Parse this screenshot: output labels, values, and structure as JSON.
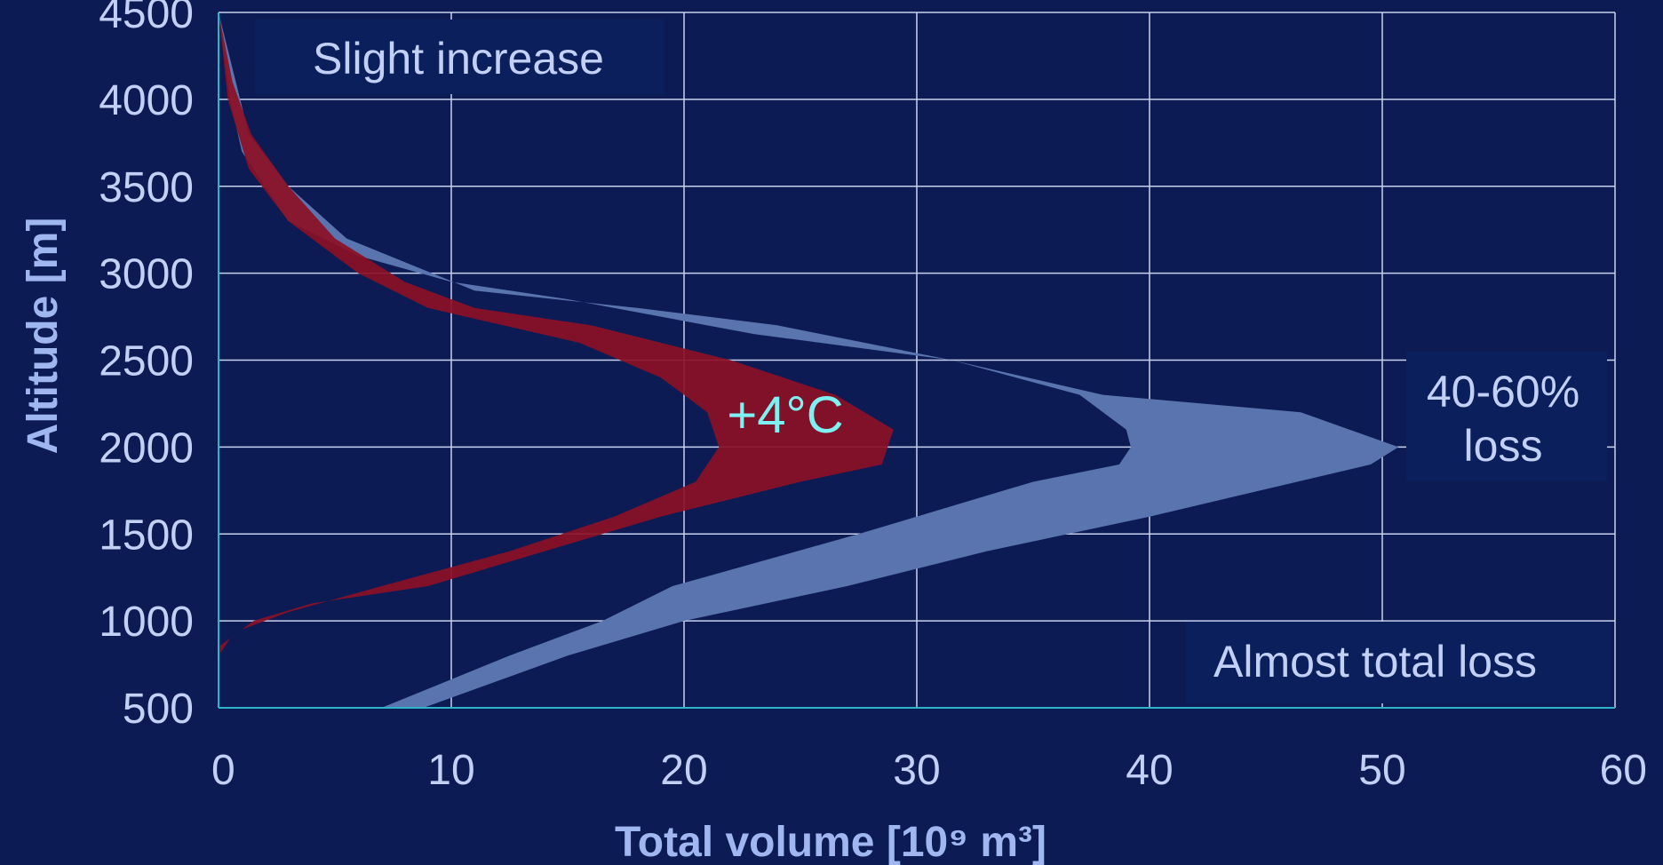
{
  "chart_data": {
    "type": "area",
    "xlabel": "Total volume [10⁹ m³]",
    "ylabel": "Altitude [m]",
    "xlim": [
      0,
      60
    ],
    "ylim": [
      500,
      4500
    ],
    "xticks": [
      "0",
      "10",
      "20",
      "30",
      "40",
      "50",
      "60"
    ],
    "yticks": [
      "500",
      "1000",
      "1500",
      "2000",
      "2500",
      "3000",
      "3500",
      "4000",
      "4500"
    ],
    "grid": true,
    "series": [
      {
        "color": "#5a74b0",
        "band_right": [
          {
            "alt": 4500,
            "vol": 0.0
          },
          {
            "alt": 3800,
            "vol": 1.3
          },
          {
            "alt": 3500,
            "vol": 3.0
          },
          {
            "alt": 3200,
            "vol": 5.5
          },
          {
            "alt": 2900,
            "vol": 11.0
          },
          {
            "alt": 2800,
            "vol": 18.0
          },
          {
            "alt": 2700,
            "vol": 24.0
          },
          {
            "alt": 2500,
            "vol": 31.5
          },
          {
            "alt": 2300,
            "vol": 38.0
          },
          {
            "alt": 2200,
            "vol": 46.5
          },
          {
            "alt": 2000,
            "vol": 50.7
          },
          {
            "alt": 1900,
            "vol": 49.5
          },
          {
            "alt": 1600,
            "vol": 40.0
          },
          {
            "alt": 1400,
            "vol": 33.0
          },
          {
            "alt": 1200,
            "vol": 27.0
          },
          {
            "alt": 1000,
            "vol": 20.0
          },
          {
            "alt": 800,
            "vol": 15.0
          },
          {
            "alt": 500,
            "vol": 8.8
          }
        ],
        "band_left": [
          {
            "alt": 500,
            "vol": 7.0
          },
          {
            "alt": 800,
            "vol": 12.5
          },
          {
            "alt": 1000,
            "vol": 16.5
          },
          {
            "alt": 1200,
            "vol": 19.5
          },
          {
            "alt": 1500,
            "vol": 27.5
          },
          {
            "alt": 1800,
            "vol": 35.0
          },
          {
            "alt": 1900,
            "vol": 38.7
          },
          {
            "alt": 2000,
            "vol": 39.2
          },
          {
            "alt": 2100,
            "vol": 39.0
          },
          {
            "alt": 2300,
            "vol": 37.0
          },
          {
            "alt": 2500,
            "vol": 31.5
          },
          {
            "alt": 2650,
            "vol": 23.0
          },
          {
            "alt": 2850,
            "vol": 15.0
          },
          {
            "alt": 2950,
            "vol": 10.0
          },
          {
            "alt": 3100,
            "vol": 6.0
          },
          {
            "alt": 3300,
            "vol": 3.0
          },
          {
            "alt": 3500,
            "vol": 2.0
          },
          {
            "alt": 3700,
            "vol": 1.0
          },
          {
            "alt": 4000,
            "vol": 0.5
          },
          {
            "alt": 4500,
            "vol": 0.0
          }
        ]
      },
      {
        "color": "#8b1025",
        "band_right": [
          {
            "alt": 4500,
            "vol": 0.0
          },
          {
            "alt": 4100,
            "vol": 0.6
          },
          {
            "alt": 3800,
            "vol": 1.4
          },
          {
            "alt": 3500,
            "vol": 3.0
          },
          {
            "alt": 3200,
            "vol": 5.0
          },
          {
            "alt": 2950,
            "vol": 8.0
          },
          {
            "alt": 2800,
            "vol": 11.0
          },
          {
            "alt": 2700,
            "vol": 16.0
          },
          {
            "alt": 2500,
            "vol": 22.0
          },
          {
            "alt": 2300,
            "vol": 26.5
          },
          {
            "alt": 2100,
            "vol": 29.0
          },
          {
            "alt": 1900,
            "vol": 28.5
          },
          {
            "alt": 1800,
            "vol": 25.0
          },
          {
            "alt": 1600,
            "vol": 19.0
          },
          {
            "alt": 1400,
            "vol": 14.0
          },
          {
            "alt": 1200,
            "vol": 9.0
          },
          {
            "alt": 1100,
            "vol": 4.0
          },
          {
            "alt": 1000,
            "vol": 1.5
          },
          {
            "alt": 900,
            "vol": 0.5
          },
          {
            "alt": 800,
            "vol": 0.0
          }
        ],
        "band_left": [
          {
            "alt": 850,
            "vol": 0.0
          },
          {
            "alt": 950,
            "vol": 1.0
          },
          {
            "alt": 1050,
            "vol": 3.0
          },
          {
            "alt": 1200,
            "vol": 7.0
          },
          {
            "alt": 1400,
            "vol": 12.5
          },
          {
            "alt": 1600,
            "vol": 17.0
          },
          {
            "alt": 1800,
            "vol": 20.5
          },
          {
            "alt": 2000,
            "vol": 21.5
          },
          {
            "alt": 2200,
            "vol": 21.0
          },
          {
            "alt": 2400,
            "vol": 19.0
          },
          {
            "alt": 2600,
            "vol": 15.5
          },
          {
            "alt": 2800,
            "vol": 9.0
          },
          {
            "alt": 3000,
            "vol": 6.0
          },
          {
            "alt": 3300,
            "vol": 3.0
          },
          {
            "alt": 3600,
            "vol": 1.3
          },
          {
            "alt": 4000,
            "vol": 0.4
          },
          {
            "alt": 4500,
            "vol": 0.0
          }
        ]
      }
    ],
    "annotations": {
      "slight_increase": "Slight increase",
      "plus4": "+4°C",
      "loss_line1": "40-60%",
      "loss_line2": "loss",
      "almost_total": "Almost total loss"
    }
  },
  "colors": {
    "background": "#0d1b54",
    "panel": "#0a1f5c",
    "grid": "#c8d2ee",
    "axis": "#2fb3c9",
    "light_band": "#5a74b0",
    "red_band": "#8b1025",
    "text": "#c2d0f5",
    "accent_text": "#7ff0f0"
  }
}
